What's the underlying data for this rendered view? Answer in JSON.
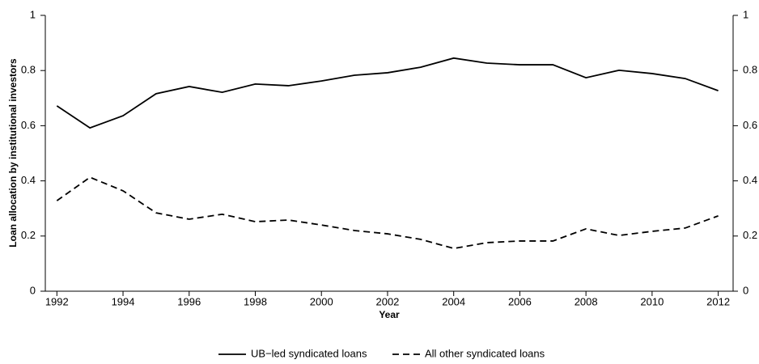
{
  "chart_data": {
    "type": "line",
    "x_label": "Year",
    "y_label": "Loan allocation by institutional investors",
    "x": [
      1992,
      1993,
      1994,
      1995,
      1996,
      1997,
      1998,
      1999,
      2000,
      2001,
      2002,
      2003,
      2004,
      2005,
      2006,
      2007,
      2008,
      2009,
      2010,
      2011,
      2012
    ],
    "series": [
      {
        "name": "UB−led syndicated loans",
        "color": "#000000",
        "dash": "solid",
        "values": [
          0.672,
          0.592,
          0.636,
          0.716,
          0.742,
          0.721,
          0.751,
          0.745,
          0.762,
          0.783,
          0.792,
          0.812,
          0.845,
          0.827,
          0.821,
          0.821,
          0.774,
          0.801,
          0.789,
          0.771,
          0.727
        ]
      },
      {
        "name": "All other syndicated loans",
        "color": "#000000",
        "dash": "dashed",
        "values": [
          0.328,
          0.413,
          0.364,
          0.284,
          0.261,
          0.279,
          0.252,
          0.258,
          0.24,
          0.22,
          0.208,
          0.188,
          0.155,
          0.176,
          0.182,
          0.182,
          0.226,
          0.202,
          0.217,
          0.229,
          0.273
        ]
      }
    ],
    "xlim": [
      1991.65,
      2012.45
    ],
    "xticks": [
      1992,
      1994,
      1996,
      1998,
      2000,
      2002,
      2004,
      2006,
      2008,
      2010,
      2012
    ],
    "ylim": [
      0,
      1
    ],
    "yticks": [
      0,
      0.2,
      0.4,
      0.6,
      0.8,
      1
    ],
    "y2lim": [
      0,
      1
    ],
    "y2ticks": [
      0,
      0.2,
      0.4,
      0.6,
      0.8,
      1
    ],
    "legend": "bottom"
  }
}
